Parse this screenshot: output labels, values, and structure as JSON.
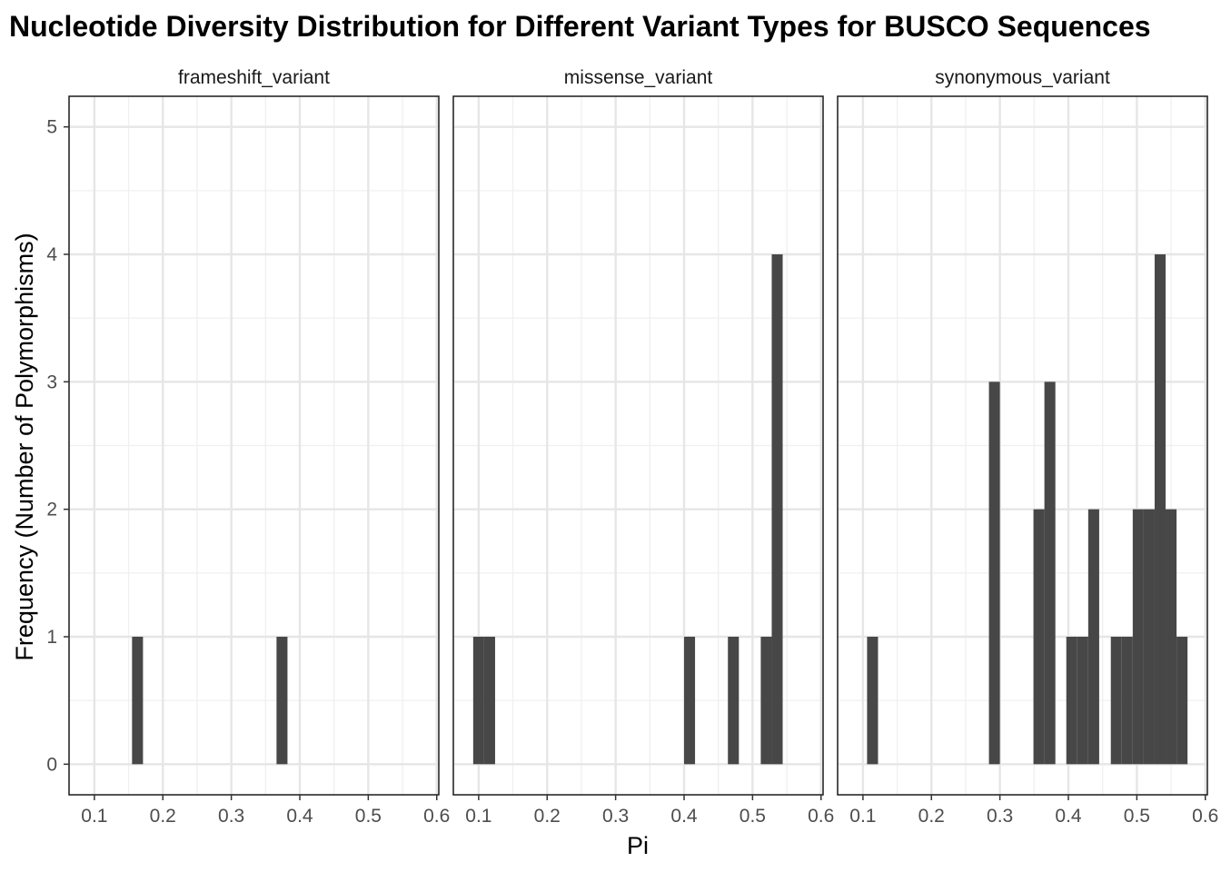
{
  "chart_data": {
    "type": "bar",
    "title": "Nucleotide Diversity Distribution for Different Variant Types for BUSCO Sequences",
    "xlabel": "Pi",
    "ylabel": "Frequency (Number of Polymorphisms)",
    "xlim": [
      0.063,
      0.603
    ],
    "ylim": [
      -0.24,
      5.24
    ],
    "bin_width": 0.016,
    "x_ticks": [
      0.1,
      0.2,
      0.3,
      0.4,
      0.5,
      0.6
    ],
    "x_tick_labels": [
      "0.1",
      "0.2",
      "0.3",
      "0.4",
      "0.5",
      "0.6"
    ],
    "y_ticks": [
      0,
      1,
      2,
      3,
      4,
      5
    ],
    "y_tick_labels": [
      "0",
      "1",
      "2",
      "3",
      "4",
      "5"
    ],
    "grid": true,
    "bar_color": "#474747",
    "facets": [
      {
        "name": "frameshift_variant",
        "bins": [
          {
            "x": 0.163,
            "count": 1
          },
          {
            "x": 0.374,
            "count": 1
          }
        ]
      },
      {
        "name": "missense_variant",
        "bins": [
          {
            "x": 0.1,
            "count": 1
          },
          {
            "x": 0.116,
            "count": 1
          },
          {
            "x": 0.408,
            "count": 1
          },
          {
            "x": 0.472,
            "count": 1
          },
          {
            "x": 0.52,
            "count": 1
          },
          {
            "x": 0.536,
            "count": 4
          }
        ]
      },
      {
        "name": "synonymous_variant",
        "bins": [
          {
            "x": 0.114,
            "count": 1
          },
          {
            "x": 0.292,
            "count": 3
          },
          {
            "x": 0.357,
            "count": 2
          },
          {
            "x": 0.373,
            "count": 3
          },
          {
            "x": 0.405,
            "count": 1
          },
          {
            "x": 0.421,
            "count": 1
          },
          {
            "x": 0.437,
            "count": 2
          },
          {
            "x": 0.47,
            "count": 1
          },
          {
            "x": 0.486,
            "count": 1
          },
          {
            "x": 0.502,
            "count": 2
          },
          {
            "x": 0.518,
            "count": 2
          },
          {
            "x": 0.534,
            "count": 4
          },
          {
            "x": 0.55,
            "count": 2
          },
          {
            "x": 0.566,
            "count": 1
          }
        ]
      }
    ]
  }
}
